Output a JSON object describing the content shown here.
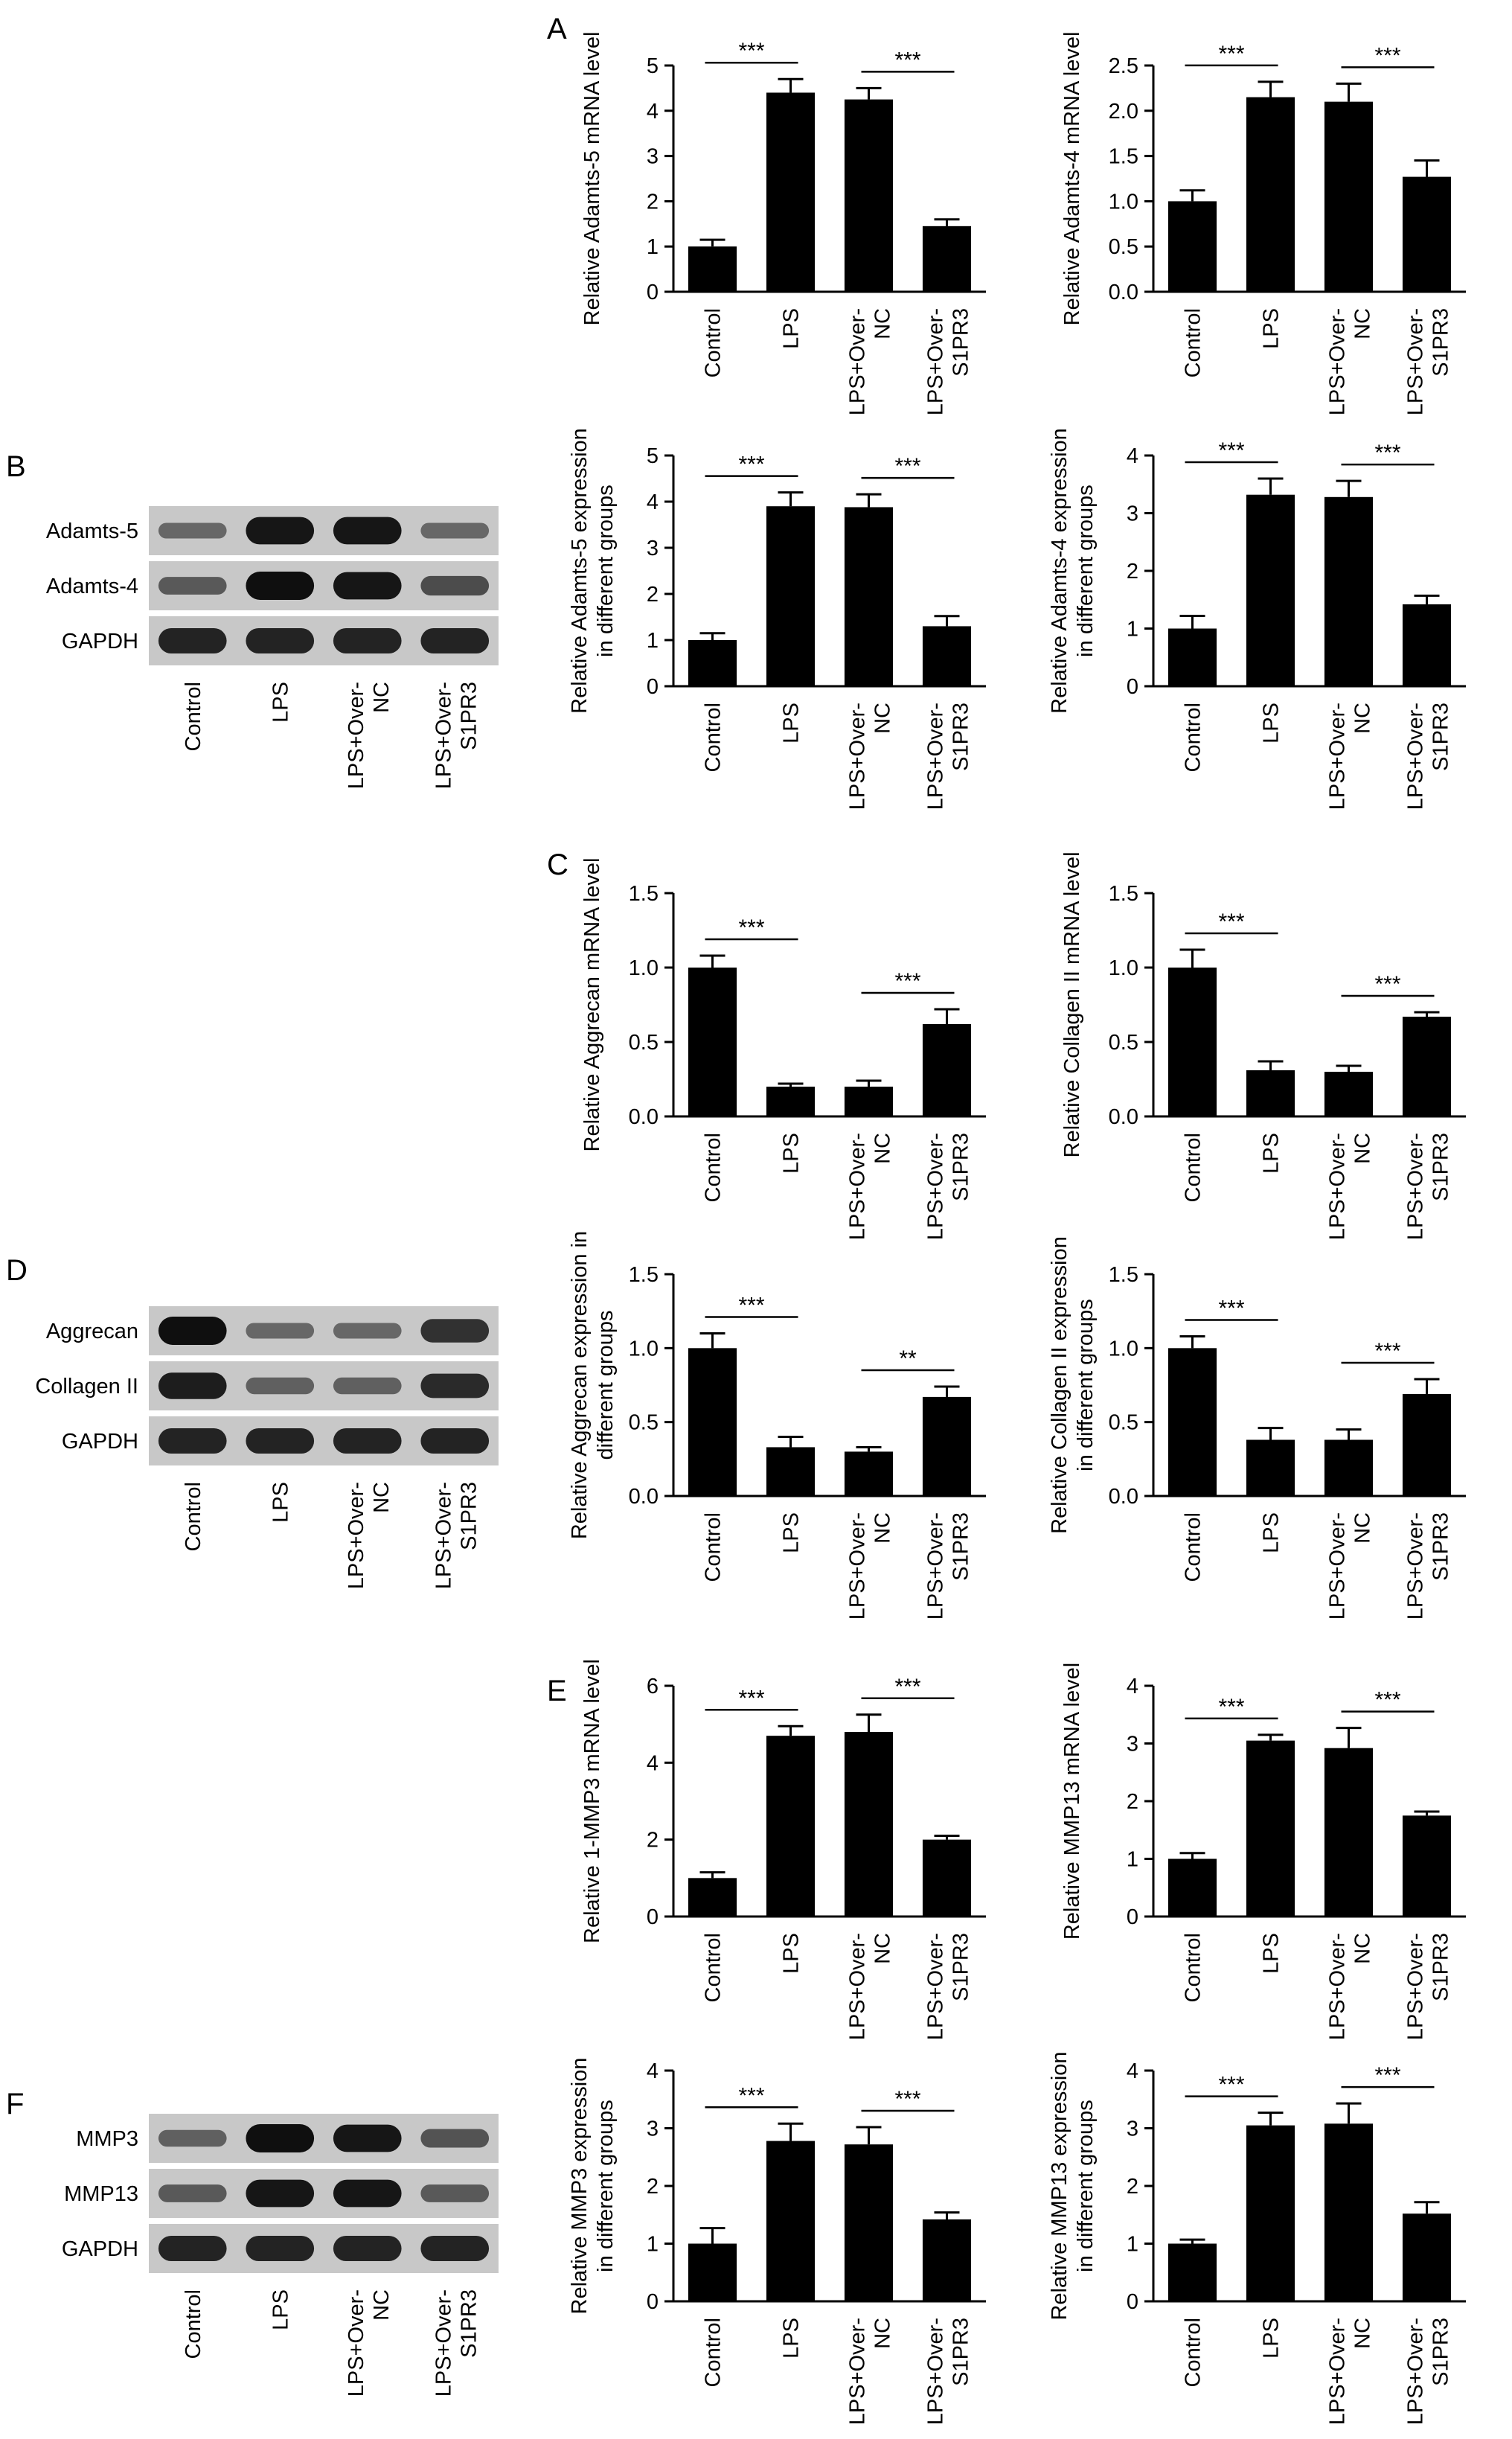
{
  "panel_letters": {
    "A": "A",
    "B": "B",
    "C": "C",
    "D": "D",
    "E": "E",
    "F": "F"
  },
  "blots": [
    {
      "panel": "B",
      "rows": [
        {
          "label": "Adamts-5",
          "bands": [
            0.35,
            0.95,
            0.95,
            0.35
          ]
        },
        {
          "label": "Adamts-4",
          "bands": [
            0.45,
            1.0,
            0.95,
            0.55
          ]
        },
        {
          "label": "GAPDH",
          "bands": [
            0.85,
            0.85,
            0.85,
            0.85
          ]
        }
      ],
      "lanes": [
        "Control",
        "LPS",
        "LPS+Over-\nNC",
        "LPS+Over-\nS1PR3"
      ]
    },
    {
      "panel": "D",
      "rows": [
        {
          "label": "Aggrecan",
          "bands": [
            1.0,
            0.35,
            0.35,
            0.75
          ]
        },
        {
          "label": "Collagen II",
          "bands": [
            0.9,
            0.4,
            0.4,
            0.8
          ]
        },
        {
          "label": "GAPDH",
          "bands": [
            0.85,
            0.85,
            0.85,
            0.85
          ]
        }
      ],
      "lanes": [
        "Control",
        "LPS",
        "LPS+Over-\nNC",
        "LPS+Over-\nS1PR3"
      ]
    },
    {
      "panel": "F",
      "rows": [
        {
          "label": "MMP3",
          "bands": [
            0.4,
            1.0,
            0.95,
            0.5
          ]
        },
        {
          "label": "MMP13",
          "bands": [
            0.45,
            0.95,
            0.95,
            0.45
          ]
        },
        {
          "label": "GAPDH",
          "bands": [
            0.85,
            0.85,
            0.85,
            0.85
          ]
        }
      ],
      "lanes": [
        "Control",
        "LPS",
        "LPS+Over-\nNC",
        "LPS+Over-\nS1PR3"
      ]
    }
  ],
  "chart_data": [
    {
      "type": "bar",
      "ylabel": "Relative Adamts-5 mRNA level",
      "ylim": [
        0,
        5
      ],
      "yticks": [
        0,
        1,
        2,
        3,
        4,
        5
      ],
      "categories": [
        "Control",
        "LPS",
        "LPS+Over-\nNC",
        "LPS+Over-\nS1PR3"
      ],
      "values": [
        1.0,
        4.4,
        4.25,
        1.45
      ],
      "errors": [
        0.15,
        0.3,
        0.25,
        0.15
      ],
      "significance": [
        {
          "from": 0,
          "to": 1,
          "label": "***"
        },
        {
          "from": 2,
          "to": 3,
          "label": "***"
        }
      ]
    },
    {
      "type": "bar",
      "ylabel": "Relative Adamts-4 mRNA level",
      "ylim": [
        0,
        2.5
      ],
      "yticks": [
        "0.0",
        "0.5",
        "1.0",
        "1.5",
        "2.0",
        "2.5"
      ],
      "categories": [
        "Control",
        "LPS",
        "LPS+Over-\nNC",
        "LPS+Over-\nS1PR3"
      ],
      "values": [
        1.0,
        2.15,
        2.1,
        1.27
      ],
      "errors": [
        0.12,
        0.17,
        0.2,
        0.18
      ],
      "significance": [
        {
          "from": 0,
          "to": 1,
          "label": "***"
        },
        {
          "from": 2,
          "to": 3,
          "label": "***"
        }
      ]
    },
    {
      "type": "bar",
      "ylabel": "Relative Adamts-5 expression\nin different groups",
      "ylim": [
        0,
        5
      ],
      "yticks": [
        0,
        1,
        2,
        3,
        4,
        5
      ],
      "categories": [
        "Control",
        "LPS",
        "LPS+Over-\nNC",
        "LPS+Over-\nS1PR3"
      ],
      "values": [
        1.0,
        3.9,
        3.88,
        1.3
      ],
      "errors": [
        0.15,
        0.3,
        0.28,
        0.22
      ],
      "significance": [
        {
          "from": 0,
          "to": 1,
          "label": "***"
        },
        {
          "from": 2,
          "to": 3,
          "label": "***"
        }
      ]
    },
    {
      "type": "bar",
      "ylabel": "Relative Adamts-4 expression\nin different groups",
      "ylim": [
        0,
        4
      ],
      "yticks": [
        0,
        1,
        2,
        3,
        4
      ],
      "categories": [
        "Control",
        "LPS",
        "LPS+Over-\nNC",
        "LPS+Over-\nS1PR3"
      ],
      "values": [
        1.0,
        3.32,
        3.28,
        1.42
      ],
      "errors": [
        0.22,
        0.28,
        0.28,
        0.15
      ],
      "significance": [
        {
          "from": 0,
          "to": 1,
          "label": "***"
        },
        {
          "from": 2,
          "to": 3,
          "label": "***"
        }
      ]
    },
    {
      "type": "bar",
      "ylabel": "Relative Aggrecan mRNA level",
      "ylim": [
        0,
        1.5
      ],
      "yticks": [
        "0.0",
        "0.5",
        "1.0",
        "1.5"
      ],
      "categories": [
        "Control",
        "LPS",
        "LPS+Over-\nNC",
        "LPS+Over-\nS1PR3"
      ],
      "values": [
        1.0,
        0.2,
        0.2,
        0.62
      ],
      "errors": [
        0.08,
        0.02,
        0.04,
        0.1
      ],
      "significance": [
        {
          "from": 0,
          "to": 1,
          "label": "***"
        },
        {
          "from": 2,
          "to": 3,
          "label": "***"
        }
      ]
    },
    {
      "type": "bar",
      "ylabel": "Relative Collagen II mRNA level",
      "ylim": [
        0,
        1.5
      ],
      "yticks": [
        "0.0",
        "0.5",
        "1.0",
        "1.5"
      ],
      "categories": [
        "Control",
        "LPS",
        "LPS+Over-\nNC",
        "LPS+Over-\nS1PR3"
      ],
      "values": [
        1.0,
        0.31,
        0.3,
        0.67
      ],
      "errors": [
        0.12,
        0.06,
        0.04,
        0.03
      ],
      "significance": [
        {
          "from": 0,
          "to": 1,
          "label": "***"
        },
        {
          "from": 2,
          "to": 3,
          "label": "***"
        }
      ]
    },
    {
      "type": "bar",
      "ylabel": "Relative Aggrecan expression in\ndifferent groups",
      "ylim": [
        0,
        1.5
      ],
      "yticks": [
        "0.0",
        "0.5",
        "1.0",
        "1.5"
      ],
      "categories": [
        "Control",
        "LPS",
        "LPS+Over-\nNC",
        "LPS+Over-\nS1PR3"
      ],
      "values": [
        1.0,
        0.33,
        0.3,
        0.67
      ],
      "errors": [
        0.1,
        0.07,
        0.03,
        0.07
      ],
      "significance": [
        {
          "from": 0,
          "to": 1,
          "label": "***"
        },
        {
          "from": 2,
          "to": 3,
          "label": "**"
        }
      ]
    },
    {
      "type": "bar",
      "ylabel": "Relative Collagen II expression\nin different groups",
      "ylim": [
        0,
        1.5
      ],
      "yticks": [
        "0.0",
        "0.5",
        "1.0",
        "1.5"
      ],
      "categories": [
        "Control",
        "LPS",
        "LPS+Over-\nNC",
        "LPS+Over-\nS1PR3"
      ],
      "values": [
        1.0,
        0.38,
        0.38,
        0.69
      ],
      "errors": [
        0.08,
        0.08,
        0.07,
        0.1
      ],
      "significance": [
        {
          "from": 0,
          "to": 1,
          "label": "***"
        },
        {
          "from": 2,
          "to": 3,
          "label": "***"
        }
      ]
    },
    {
      "type": "bar",
      "ylabel": "Relative 1-MMP3 mRNA level",
      "ylim": [
        0,
        6
      ],
      "yticks": [
        0,
        2,
        4,
        6
      ],
      "categories": [
        "Control",
        "LPS",
        "LPS+Over-\nNC",
        "LPS+Over-\nS1PR3"
      ],
      "values": [
        1.0,
        4.7,
        4.8,
        2.0
      ],
      "errors": [
        0.15,
        0.25,
        0.45,
        0.1
      ],
      "significance": [
        {
          "from": 0,
          "to": 1,
          "label": "***"
        },
        {
          "from": 2,
          "to": 3,
          "label": "***"
        }
      ]
    },
    {
      "type": "bar",
      "ylabel": "Relative MMP13 mRNA level",
      "ylim": [
        0,
        4
      ],
      "yticks": [
        0,
        1,
        2,
        3,
        4
      ],
      "categories": [
        "Control",
        "LPS",
        "LPS+Over-\nNC",
        "LPS+Over-\nS1PR3"
      ],
      "values": [
        1.0,
        3.05,
        2.92,
        1.75
      ],
      "errors": [
        0.1,
        0.1,
        0.35,
        0.07
      ],
      "significance": [
        {
          "from": 0,
          "to": 1,
          "label": "***"
        },
        {
          "from": 2,
          "to": 3,
          "label": "***"
        }
      ]
    },
    {
      "type": "bar",
      "ylabel": "Relative MMP3 expression\nin different groups",
      "ylim": [
        0,
        4
      ],
      "yticks": [
        0,
        1,
        2,
        3,
        4
      ],
      "categories": [
        "Control",
        "LPS",
        "LPS+Over-\nNC",
        "LPS+Over-\nS1PR3"
      ],
      "values": [
        1.0,
        2.78,
        2.72,
        1.42
      ],
      "errors": [
        0.27,
        0.3,
        0.3,
        0.12
      ],
      "significance": [
        {
          "from": 0,
          "to": 1,
          "label": "***"
        },
        {
          "from": 2,
          "to": 3,
          "label": "***"
        }
      ]
    },
    {
      "type": "bar",
      "ylabel": "Relative MMP13 expression\nin different groups",
      "ylim": [
        0,
        4
      ],
      "yticks": [
        0,
        1,
        2,
        3,
        4
      ],
      "categories": [
        "Control",
        "LPS",
        "LPS+Over-\nNC",
        "LPS+Over-\nS1PR3"
      ],
      "values": [
        1.0,
        3.05,
        3.08,
        1.52
      ],
      "errors": [
        0.07,
        0.22,
        0.35,
        0.2
      ],
      "significance": [
        {
          "from": 0,
          "to": 1,
          "label": "***"
        },
        {
          "from": 2,
          "to": 3,
          "label": "***"
        }
      ]
    }
  ]
}
